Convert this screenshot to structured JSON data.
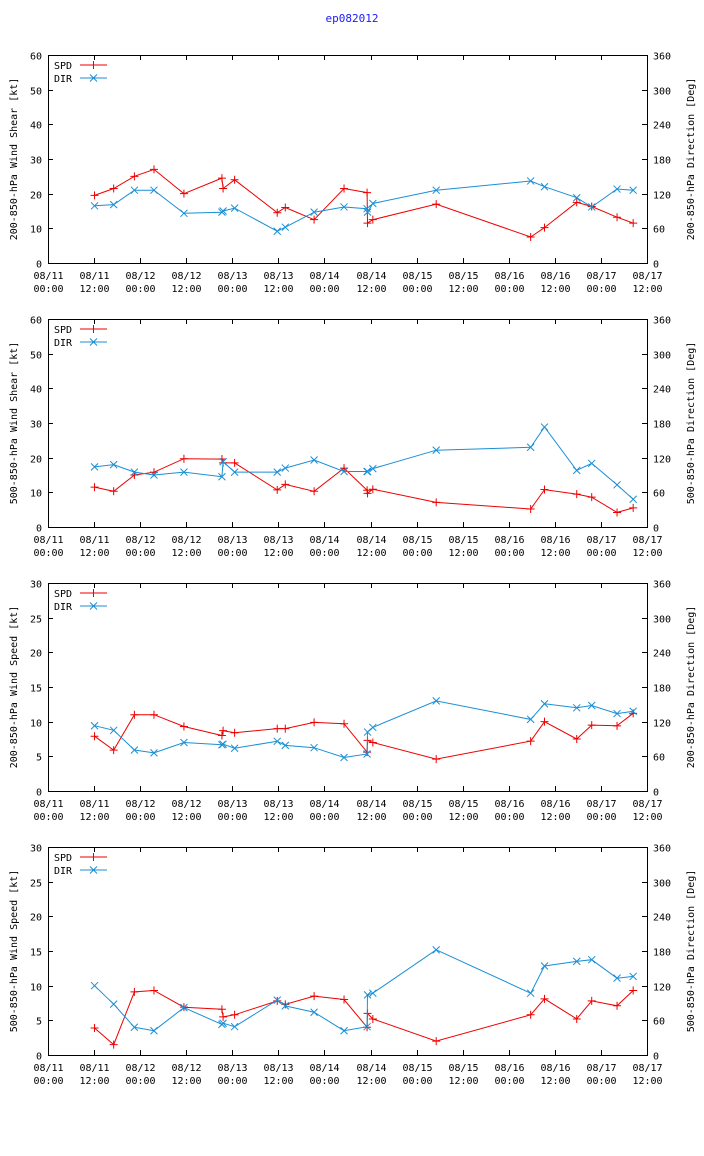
{
  "page_title": "ep082012",
  "colors": {
    "spd": "#ee0000",
    "dir": "#1a8fd6",
    "axis": "#000000"
  },
  "chart_data": [
    {
      "type": "line",
      "ylabel": "200-850-hPa Wind Shear [kt]",
      "y2label": "200-850-hPa Direction [Deg]",
      "ylim": [
        0,
        60
      ],
      "y2lim": [
        0,
        360
      ],
      "yticks": [
        0,
        10,
        20,
        30,
        40,
        50,
        60
      ],
      "y2ticks": [
        0,
        60,
        120,
        180,
        240,
        300,
        360
      ],
      "xlim": [
        0,
        26
      ],
      "xtick_step": 2,
      "xtick_labels": [
        [
          "08/11",
          "00:00"
        ],
        [
          "08/11",
          "12:00"
        ],
        [
          "08/12",
          "00:00"
        ],
        [
          "08/12",
          "12:00"
        ],
        [
          "08/13",
          "00:00"
        ],
        [
          "08/13",
          "12:00"
        ],
        [
          "08/14",
          "00:00"
        ],
        [
          "08/14",
          "12:00"
        ],
        [
          "08/15",
          "00:00"
        ],
        [
          "08/15",
          "12:00"
        ],
        [
          "08/16",
          "00:00"
        ],
        [
          "08/16",
          "12:00"
        ],
        [
          "08/17",
          "00:00"
        ],
        [
          "08/17",
          "12:00"
        ]
      ],
      "legend": [
        "SPD",
        "DIR"
      ],
      "series": [
        {
          "name": "SPD",
          "axis": "left",
          "x": [
            2.02,
            2.85,
            3.75,
            4.6,
            5.9,
            7.55,
            7.6,
            8.1,
            9.95,
            10.3,
            11.55,
            12.85,
            13.85,
            13.87,
            14.1,
            16.85,
            20.95,
            21.55,
            22.95,
            23.6,
            24.7,
            25.4
          ],
          "values": [
            19.5,
            21.5,
            25,
            27,
            20,
            24.5,
            21.5,
            24,
            14.5,
            16,
            12.5,
            21.5,
            20.3,
            11.5,
            12.5,
            17,
            7.5,
            10.2,
            17.5,
            16.3,
            13.2,
            11.5
          ]
        },
        {
          "name": "DIR",
          "axis": "right",
          "x": [
            2.02,
            2.85,
            3.75,
            4.6,
            5.9,
            7.55,
            7.6,
            8.1,
            9.95,
            10.3,
            11.55,
            12.85,
            13.85,
            13.87,
            14.1,
            16.85,
            20.95,
            21.55,
            22.95,
            23.6,
            24.7,
            25.4
          ],
          "values": [
            99,
            101,
            126,
            126,
            86,
            88,
            90,
            95,
            55,
            62,
            88,
            97,
            94,
            88,
            103,
            126,
            142,
            132,
            113,
            97,
            128,
            126
          ]
        }
      ]
    },
    {
      "type": "line",
      "ylabel": "500-850-hPa Wind Shear [kt]",
      "y2label": "500-850-hPa Direction [Deg]",
      "ylim": [
        0,
        60
      ],
      "y2lim": [
        0,
        360
      ],
      "yticks": [
        0,
        10,
        20,
        30,
        40,
        50,
        60
      ],
      "y2ticks": [
        0,
        60,
        120,
        180,
        240,
        300,
        360
      ],
      "xlim": [
        0,
        26
      ],
      "xtick_step": 2,
      "xtick_labels": [
        [
          "08/11",
          "00:00"
        ],
        [
          "08/11",
          "12:00"
        ],
        [
          "08/12",
          "00:00"
        ],
        [
          "08/12",
          "12:00"
        ],
        [
          "08/13",
          "00:00"
        ],
        [
          "08/13",
          "12:00"
        ],
        [
          "08/14",
          "00:00"
        ],
        [
          "08/14",
          "12:00"
        ],
        [
          "08/15",
          "00:00"
        ],
        [
          "08/15",
          "12:00"
        ],
        [
          "08/16",
          "00:00"
        ],
        [
          "08/16",
          "12:00"
        ],
        [
          "08/17",
          "00:00"
        ],
        [
          "08/17",
          "12:00"
        ]
      ],
      "legend": [
        "SPD",
        "DIR"
      ],
      "series": [
        {
          "name": "SPD",
          "axis": "left",
          "x": [
            2.02,
            2.85,
            3.75,
            4.6,
            5.9,
            7.55,
            7.6,
            8.1,
            9.95,
            10.3,
            11.55,
            12.85,
            13.85,
            13.87,
            14.1,
            16.85,
            20.95,
            21.55,
            22.95,
            23.6,
            24.7,
            25.4
          ],
          "values": [
            11.5,
            10.3,
            15,
            15.8,
            19.7,
            19.6,
            18.5,
            18.5,
            10.7,
            12.3,
            10.3,
            17,
            10.6,
            9.7,
            10.9,
            7.1,
            5.2,
            10.8,
            9.5,
            8.6,
            4.2,
            5.5
          ]
        },
        {
          "name": "DIR",
          "axis": "right",
          "x": [
            2.02,
            2.85,
            3.75,
            4.6,
            5.9,
            7.55,
            7.6,
            8.1,
            9.95,
            10.3,
            11.55,
            12.85,
            13.85,
            13.87,
            14.1,
            16.85,
            20.95,
            21.55,
            22.95,
            23.6,
            24.7,
            25.4
          ],
          "values": [
            104,
            108,
            95,
            90,
            95,
            87,
            113,
            95,
            95,
            102,
            116,
            96,
            96,
            96,
            101,
            133,
            138,
            173,
            98,
            110,
            73,
            48
          ]
        }
      ]
    },
    {
      "type": "line",
      "ylabel": "200-850-hPa Wind Speed [kt]",
      "y2label": "200-850-hPa Direction [Deg]",
      "ylim": [
        0,
        30
      ],
      "y2lim": [
        0,
        360
      ],
      "yticks": [
        0,
        5,
        10,
        15,
        20,
        25,
        30
      ],
      "y2ticks": [
        0,
        60,
        120,
        180,
        240,
        300,
        360
      ],
      "xlim": [
        0,
        26
      ],
      "xtick_step": 2,
      "xtick_labels": [
        [
          "08/11",
          "00:00"
        ],
        [
          "08/11",
          "12:00"
        ],
        [
          "08/12",
          "00:00"
        ],
        [
          "08/12",
          "12:00"
        ],
        [
          "08/13",
          "00:00"
        ],
        [
          "08/13",
          "12:00"
        ],
        [
          "08/14",
          "00:00"
        ],
        [
          "08/14",
          "12:00"
        ],
        [
          "08/15",
          "00:00"
        ],
        [
          "08/15",
          "12:00"
        ],
        [
          "08/16",
          "00:00"
        ],
        [
          "08/16",
          "12:00"
        ],
        [
          "08/17",
          "00:00"
        ],
        [
          "08/17",
          "12:00"
        ]
      ],
      "legend": [
        "SPD",
        "DIR"
      ],
      "series": [
        {
          "name": "SPD",
          "axis": "left",
          "x": [
            2.02,
            2.85,
            3.75,
            4.6,
            5.9,
            7.55,
            7.6,
            8.1,
            9.95,
            10.3,
            11.55,
            12.85,
            13.85,
            13.87,
            14.1,
            16.85,
            20.95,
            21.55,
            22.95,
            23.6,
            24.7,
            25.4
          ],
          "values": [
            7.9,
            5.9,
            11,
            11,
            9.3,
            8,
            8.7,
            8.4,
            9,
            9,
            9.9,
            9.7,
            5.6,
            7.3,
            7,
            4.6,
            7.2,
            10,
            7.5,
            9.5,
            9.4,
            11.2
          ]
        },
        {
          "name": "DIR",
          "axis": "right",
          "x": [
            2.02,
            2.85,
            3.75,
            4.6,
            5.9,
            7.55,
            7.6,
            8.1,
            9.95,
            10.3,
            11.55,
            12.85,
            13.85,
            13.87,
            14.1,
            16.85,
            20.95,
            21.55,
            22.95,
            23.6,
            24.7,
            25.4
          ],
          "values": [
            113,
            105,
            71,
            66,
            84,
            80,
            81,
            74,
            86,
            79,
            75,
            58,
            64,
            102,
            110,
            156,
            124,
            151,
            144,
            148,
            134,
            138
          ]
        }
      ]
    },
    {
      "type": "line",
      "ylabel": "500-850-hPa Wind Speed [kt]",
      "y2label": "500-850-hPa Direction [Deg]",
      "ylim": [
        0,
        30
      ],
      "y2lim": [
        0,
        360
      ],
      "yticks": [
        0,
        5,
        10,
        15,
        20,
        25,
        30
      ],
      "y2ticks": [
        0,
        60,
        120,
        180,
        240,
        300,
        360
      ],
      "xlim": [
        0,
        26
      ],
      "xtick_step": 2,
      "xtick_labels": [
        [
          "08/11",
          "00:00"
        ],
        [
          "08/11",
          "12:00"
        ],
        [
          "08/12",
          "00:00"
        ],
        [
          "08/12",
          "12:00"
        ],
        [
          "08/13",
          "00:00"
        ],
        [
          "08/13",
          "12:00"
        ],
        [
          "08/14",
          "00:00"
        ],
        [
          "08/14",
          "12:00"
        ],
        [
          "08/15",
          "00:00"
        ],
        [
          "08/15",
          "12:00"
        ],
        [
          "08/16",
          "00:00"
        ],
        [
          "08/16",
          "12:00"
        ],
        [
          "08/17",
          "00:00"
        ],
        [
          "08/17",
          "12:00"
        ]
      ],
      "legend": [
        "SPD",
        "DIR"
      ],
      "series": [
        {
          "name": "SPD",
          "axis": "left",
          "x": [
            2.02,
            2.85,
            3.75,
            4.6,
            5.9,
            7.55,
            7.6,
            8.1,
            9.95,
            10.3,
            11.55,
            12.85,
            13.85,
            13.87,
            14.1,
            16.85,
            20.95,
            21.55,
            22.95,
            23.6,
            24.7,
            25.4
          ],
          "values": [
            3.9,
            1.5,
            9.1,
            9.3,
            6.9,
            6.6,
            5.5,
            5.8,
            7.8,
            7.3,
            8.5,
            8,
            4,
            6,
            5.2,
            2,
            5.8,
            8.1,
            5.2,
            7.8,
            7.1,
            9.3
          ]
        },
        {
          "name": "DIR",
          "axis": "right",
          "x": [
            2.02,
            2.85,
            3.75,
            4.6,
            5.9,
            7.55,
            7.6,
            8.1,
            9.95,
            10.3,
            11.55,
            12.85,
            13.85,
            13.87,
            14.1,
            16.85,
            20.95,
            21.55,
            22.95,
            23.6,
            24.7,
            25.4
          ],
          "values": [
            120,
            88,
            48,
            42,
            82,
            53,
            55,
            49,
            95,
            85,
            74,
            42,
            49,
            104,
            107,
            182,
            107,
            154,
            162,
            165,
            133,
            136
          ]
        }
      ]
    }
  ]
}
